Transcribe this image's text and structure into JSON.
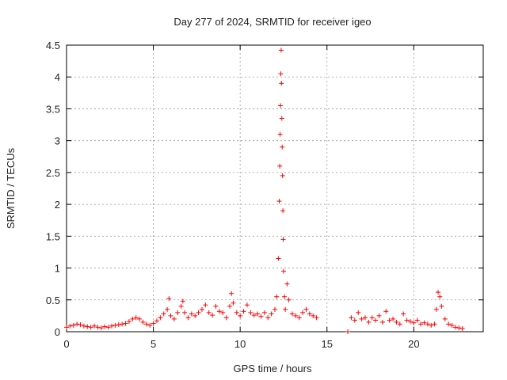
{
  "chart_data": {
    "type": "scatter",
    "title": "Day 277 of 2024, SRMTID for receiver igeo",
    "xlabel": "GPS time / hours",
    "ylabel": "SRMTID / TECUs",
    "xlim": [
      0,
      24
    ],
    "ylim": [
      0,
      4.5
    ],
    "xticks": [
      0,
      5,
      10,
      15,
      20
    ],
    "xtick_labels": [
      "0",
      "5",
      "10",
      "15",
      "20"
    ],
    "yticks": [
      0,
      0.5,
      1,
      1.5,
      2,
      2.5,
      3,
      3.5,
      4,
      4.5
    ],
    "ytick_labels": [
      "0",
      "0.5",
      "1",
      "1.5",
      "2",
      "2.5",
      "3",
      "3.5",
      "4",
      "4.5"
    ],
    "grid": true,
    "marker": "+",
    "color": "#ff0000",
    "series": [
      {
        "name": "SRMTID",
        "points": [
          [
            0.0,
            0.07
          ],
          [
            0.2,
            0.09
          ],
          [
            0.4,
            0.1
          ],
          [
            0.6,
            0.12
          ],
          [
            0.8,
            0.11
          ],
          [
            1.0,
            0.09
          ],
          [
            1.2,
            0.08
          ],
          [
            1.4,
            0.07
          ],
          [
            1.6,
            0.09
          ],
          [
            1.8,
            0.07
          ],
          [
            2.0,
            0.06
          ],
          [
            2.2,
            0.08
          ],
          [
            2.4,
            0.07
          ],
          [
            2.6,
            0.09
          ],
          [
            2.8,
            0.1
          ],
          [
            3.0,
            0.11
          ],
          [
            3.2,
            0.12
          ],
          [
            3.4,
            0.13
          ],
          [
            3.6,
            0.16
          ],
          [
            3.8,
            0.2
          ],
          [
            4.0,
            0.22
          ],
          [
            4.2,
            0.2
          ],
          [
            4.4,
            0.15
          ],
          [
            4.6,
            0.12
          ],
          [
            4.8,
            0.1
          ],
          [
            5.0,
            0.13
          ],
          [
            5.2,
            0.17
          ],
          [
            5.4,
            0.22
          ],
          [
            5.6,
            0.28
          ],
          [
            5.8,
            0.35
          ],
          [
            5.9,
            0.52
          ],
          [
            6.0,
            0.25
          ],
          [
            6.2,
            0.2
          ],
          [
            6.4,
            0.3
          ],
          [
            6.6,
            0.4
          ],
          [
            6.7,
            0.48
          ],
          [
            6.8,
            0.3
          ],
          [
            7.0,
            0.22
          ],
          [
            7.2,
            0.28
          ],
          [
            7.4,
            0.25
          ],
          [
            7.6,
            0.3
          ],
          [
            7.8,
            0.35
          ],
          [
            8.0,
            0.42
          ],
          [
            8.2,
            0.3
          ],
          [
            8.4,
            0.26
          ],
          [
            8.6,
            0.4
          ],
          [
            8.8,
            0.32
          ],
          [
            9.0,
            0.3
          ],
          [
            9.2,
            0.22
          ],
          [
            9.4,
            0.4
          ],
          [
            9.5,
            0.6
          ],
          [
            9.6,
            0.45
          ],
          [
            9.8,
            0.3
          ],
          [
            10.0,
            0.25
          ],
          [
            10.2,
            0.32
          ],
          [
            10.4,
            0.42
          ],
          [
            10.6,
            0.3
          ],
          [
            10.8,
            0.26
          ],
          [
            11.0,
            0.28
          ],
          [
            11.2,
            0.24
          ],
          [
            11.4,
            0.3
          ],
          [
            11.6,
            0.22
          ],
          [
            11.8,
            0.28
          ],
          [
            12.0,
            0.35
          ],
          [
            12.1,
            0.55
          ],
          [
            12.2,
            1.15
          ],
          [
            12.25,
            2.05
          ],
          [
            12.28,
            2.6
          ],
          [
            12.3,
            3.1
          ],
          [
            12.32,
            3.55
          ],
          [
            12.34,
            4.05
          ],
          [
            12.36,
            4.42
          ],
          [
            12.38,
            3.9
          ],
          [
            12.4,
            3.35
          ],
          [
            12.42,
            2.9
          ],
          [
            12.44,
            2.45
          ],
          [
            12.46,
            1.9
          ],
          [
            12.48,
            1.45
          ],
          [
            12.5,
            0.95
          ],
          [
            12.55,
            0.55
          ],
          [
            12.6,
            0.35
          ],
          [
            12.7,
            0.75
          ],
          [
            12.8,
            0.5
          ],
          [
            13.0,
            0.28
          ],
          [
            13.2,
            0.25
          ],
          [
            13.4,
            0.22
          ],
          [
            13.6,
            0.3
          ],
          [
            13.8,
            0.35
          ],
          [
            14.0,
            0.28
          ],
          [
            14.2,
            0.25
          ],
          [
            14.4,
            0.22
          ],
          [
            16.2,
            0.0
          ],
          [
            16.4,
            0.22
          ],
          [
            16.6,
            0.18
          ],
          [
            16.8,
            0.3
          ],
          [
            17.0,
            0.2
          ],
          [
            17.2,
            0.22
          ],
          [
            17.4,
            0.15
          ],
          [
            17.6,
            0.22
          ],
          [
            17.8,
            0.18
          ],
          [
            18.0,
            0.25
          ],
          [
            18.2,
            0.15
          ],
          [
            18.4,
            0.32
          ],
          [
            18.6,
            0.18
          ],
          [
            18.8,
            0.2
          ],
          [
            19.0,
            0.15
          ],
          [
            19.2,
            0.12
          ],
          [
            19.4,
            0.28
          ],
          [
            19.6,
            0.18
          ],
          [
            19.8,
            0.16
          ],
          [
            20.0,
            0.14
          ],
          [
            20.2,
            0.18
          ],
          [
            20.4,
            0.12
          ],
          [
            20.6,
            0.14
          ],
          [
            20.8,
            0.12
          ],
          [
            21.0,
            0.1
          ],
          [
            21.2,
            0.12
          ],
          [
            21.3,
            0.35
          ],
          [
            21.4,
            0.62
          ],
          [
            21.5,
            0.55
          ],
          [
            21.6,
            0.4
          ],
          [
            21.8,
            0.2
          ],
          [
            22.0,
            0.12
          ],
          [
            22.2,
            0.1
          ],
          [
            22.4,
            0.07
          ],
          [
            22.6,
            0.06
          ],
          [
            22.8,
            0.05
          ]
        ]
      }
    ]
  }
}
